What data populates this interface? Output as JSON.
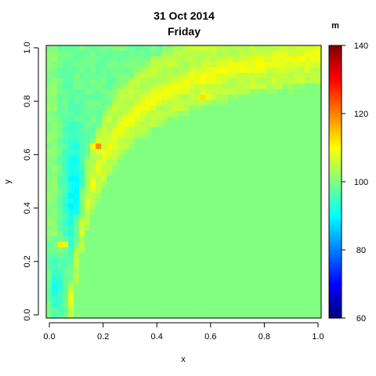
{
  "chart_data": {
    "type": "heatmap",
    "title": "31 Oct 2014",
    "subtitle": "Friday",
    "xlabel": "x",
    "ylabel": "y",
    "legend_title": "m",
    "xlim": [
      0,
      1
    ],
    "ylim": [
      0,
      1
    ],
    "x_ticks": [
      "0.0",
      "0.2",
      "0.4",
      "0.6",
      "0.8",
      "1.0"
    ],
    "y_ticks": [
      "0.0",
      "0.2",
      "0.4",
      "0.6",
      "0.8",
      "1.0"
    ],
    "colorbar": {
      "min": 60,
      "max": 140,
      "ticks": [
        "60",
        "80",
        "100",
        "120",
        "140"
      ],
      "colormap": "jet"
    },
    "grid_n": 50,
    "field": {
      "baseline": 100,
      "ridge_curve_k": 0.11,
      "ridge_peak": 109,
      "left_band_low": 91,
      "upper_left_value": 97,
      "hotspots": [
        {
          "x": 0.185,
          "y": 0.63,
          "value": 121
        },
        {
          "x": 0.06,
          "y": 0.27,
          "value": 119
        },
        {
          "x": 0.575,
          "y": 0.815,
          "value": 114
        },
        {
          "x": 0.95,
          "y": 0.915,
          "value": 109
        }
      ]
    }
  }
}
